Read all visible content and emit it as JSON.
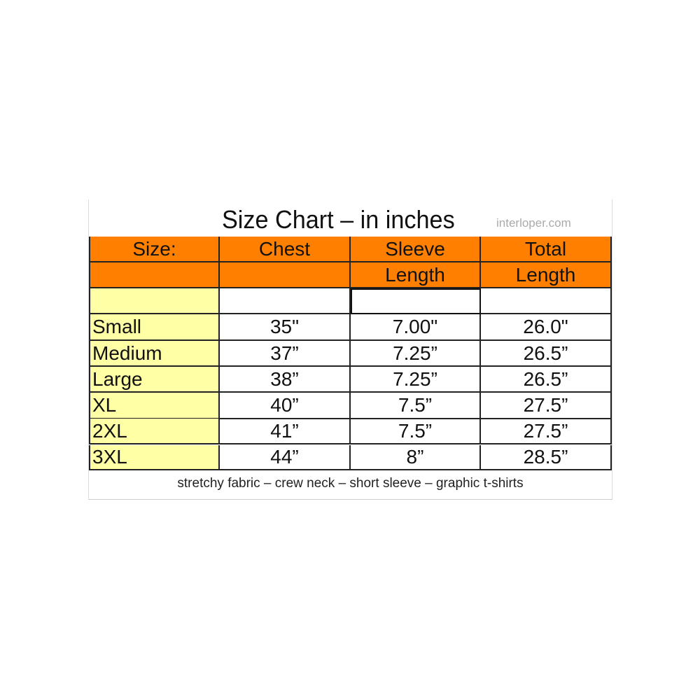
{
  "title": "Size Chart – in inches",
  "site": "interloper.com",
  "colors": {
    "header": "#ff8000",
    "size_column": "#ffffa6"
  },
  "header_rows": [
    [
      "Size:",
      "Chest",
      "Sleeve",
      "Total"
    ],
    [
      "",
      "",
      "Length",
      "Length"
    ]
  ],
  "rows": [
    [
      "",
      "",
      "",
      ""
    ],
    [
      "Small",
      "35\"",
      "7.00\"",
      "26.0\""
    ],
    [
      "Medium",
      "37”",
      "7.25”",
      "26.5”"
    ],
    [
      "Large",
      "38”",
      "7.25”",
      "26.5”"
    ],
    [
      "XL",
      "40”",
      "7.5”",
      "27.5”"
    ],
    [
      "2XL",
      "41”",
      "7.5”",
      "27.5”"
    ],
    [
      "3XL",
      "44”",
      "8”",
      "28.5”"
    ]
  ],
  "footer": "stretchy fabric – crew neck – short sleeve – graphic t-shirts"
}
